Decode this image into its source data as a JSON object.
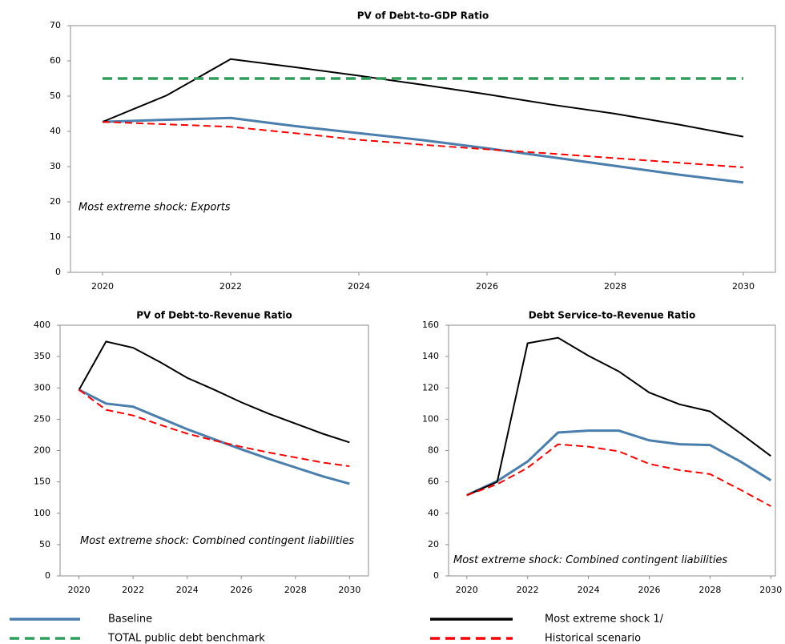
{
  "chart_data": [
    {
      "type": "line",
      "title": "PV of Debt-to-GDP Ratio",
      "x": [
        2020,
        2021,
        2022,
        2023,
        2024,
        2025,
        2026,
        2027,
        2028,
        2029,
        2030
      ],
      "xlim": [
        2019.5,
        2030.5
      ],
      "xticks": [
        2020,
        2022,
        2024,
        2026,
        2028,
        2030
      ],
      "ylim": [
        0,
        70
      ],
      "yticks": [
        0,
        10,
        20,
        30,
        40,
        50,
        60,
        70
      ],
      "annotation": "Most extreme shock: Exports",
      "series": [
        {
          "name": "Baseline",
          "color": "#4a7eac",
          "style": "solid",
          "values": [
            42.7,
            43.3,
            43.8,
            41.5,
            39.5,
            37.5,
            35.2,
            32.7,
            30.2,
            27.7,
            25.5
          ]
        },
        {
          "name": "Most extreme shock 1/",
          "color": "#000000",
          "style": "solid",
          "values": [
            42.7,
            50.2,
            60.5,
            58.2,
            55.8,
            53.2,
            50.5,
            47.6,
            45.0,
            41.9,
            38.5
          ]
        },
        {
          "name": "TOTAL public debt benchmark",
          "color": "#2e9e5b",
          "style": "dashed",
          "values": [
            55,
            55,
            55,
            55,
            55,
            55,
            55,
            55,
            55,
            55,
            55
          ]
        },
        {
          "name": "Historical scenario",
          "color": "#ff0000",
          "style": "dashed",
          "values": [
            42.7,
            42.0,
            41.3,
            39.5,
            37.6,
            36.2,
            34.9,
            33.7,
            32.4,
            31.1,
            29.8
          ]
        }
      ]
    },
    {
      "type": "line",
      "title": "PV of Debt-to-Revenue Ratio",
      "x": [
        2020,
        2021,
        2022,
        2023,
        2024,
        2025,
        2026,
        2027,
        2028,
        2029,
        2030
      ],
      "xlim": [
        2019.3,
        2030.7
      ],
      "xticks": [
        2020,
        2022,
        2024,
        2026,
        2028,
        2030
      ],
      "ylim": [
        0,
        400
      ],
      "yticks": [
        0,
        50,
        100,
        150,
        200,
        250,
        300,
        350,
        400
      ],
      "annotation": "Most extreme shock: Combined contingent liabilities",
      "series": [
        {
          "color": "#4a7eac",
          "style": "solid",
          "values": [
            297,
            275,
            270,
            252,
            234,
            218,
            202,
            187,
            173,
            159,
            147
          ]
        },
        {
          "color": "#000000",
          "style": "solid",
          "values": [
            297,
            374,
            364,
            341,
            316,
            297,
            277,
            259,
            243,
            227,
            213
          ]
        },
        {
          "color": "#ff0000",
          "style": "dashed",
          "values": [
            297,
            265,
            256,
            241,
            227,
            216,
            206,
            197,
            189,
            181,
            175
          ]
        }
      ]
    },
    {
      "type": "line",
      "title": "Debt Service-to-Revenue Ratio",
      "x": [
        2020,
        2021,
        2022,
        2023,
        2024,
        2025,
        2026,
        2027,
        2028,
        2029,
        2030
      ],
      "xlim": [
        2019.4,
        2030.15
      ],
      "xticks": [
        2020,
        2022,
        2024,
        2026,
        2028,
        2030
      ],
      "ylim": [
        0,
        160
      ],
      "yticks": [
        0,
        20,
        40,
        60,
        80,
        100,
        120,
        140,
        160
      ],
      "annotation": "Most extreme shock: Combined contingent liabilities",
      "series": [
        {
          "color": "#4a7eac",
          "style": "solid",
          "values": [
            51.5,
            60.5,
            73,
            91.5,
            92.7,
            92.7,
            86.5,
            84,
            83.5,
            73,
            61
          ]
        },
        {
          "color": "#000000",
          "style": "solid",
          "values": [
            51.5,
            60,
            148.5,
            152,
            140.5,
            130.5,
            117,
            109.5,
            105,
            91,
            76.5
          ]
        },
        {
          "color": "#ff0000",
          "style": "dashed",
          "values": [
            51.5,
            58.5,
            69,
            84,
            82.5,
            79.5,
            71.5,
            67.5,
            65,
            55,
            44.5
          ]
        }
      ]
    }
  ]
}
